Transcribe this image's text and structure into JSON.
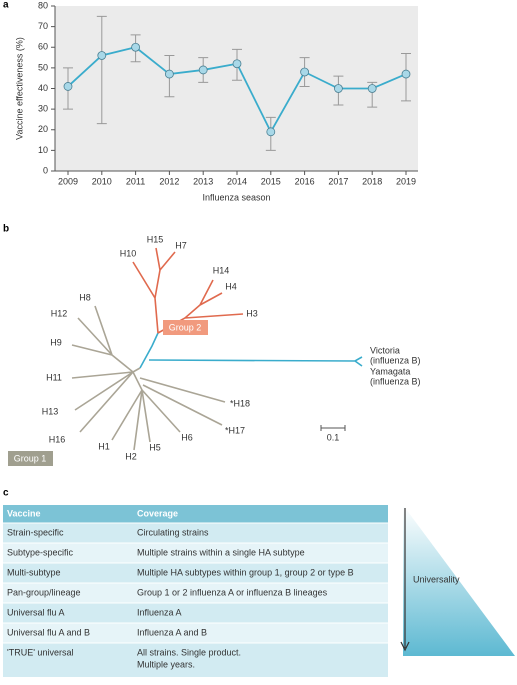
{
  "panel_labels": [
    "a",
    "b",
    "c"
  ],
  "chart_data": {
    "type": "line",
    "categories": [
      "2009",
      "2010",
      "2011",
      "2012",
      "2013",
      "2014",
      "2015",
      "2016",
      "2017",
      "2018",
      "2019"
    ],
    "series": [
      {
        "name": "Vaccine effectiveness",
        "color": "#3aaccc",
        "values": [
          41,
          56,
          60,
          47,
          49,
          52,
          19,
          48,
          40,
          40,
          47
        ],
        "lower": [
          30,
          23,
          53,
          36,
          43,
          44,
          10,
          41,
          32,
          31,
          34
        ],
        "upper": [
          50,
          75,
          66,
          56,
          55,
          59,
          26,
          55,
          46,
          43,
          57
        ]
      }
    ],
    "marker_color": "#a8d8e8",
    "error_color": "#999999",
    "background": "#ebebeb",
    "y_label": "Vaccine effectiveness (%)",
    "x_label": "Influenza season",
    "ylim": [
      0,
      80
    ],
    "yticks": [
      0,
      10,
      20,
      30,
      40,
      50,
      60,
      70,
      80
    ],
    "grid": false
  },
  "tree": {
    "labels": [
      "H15",
      "H7",
      "H10",
      "H14",
      "H4",
      "H3",
      "H8",
      "H12",
      "H9",
      "H11",
      "H13",
      "H16",
      "H1",
      "H2",
      "H5",
      "H6",
      "*H17",
      "*H18"
    ],
    "group_1": "Group 1",
    "group_2": "Group 2",
    "victoria": [
      "Victoria",
      "(influenza B)"
    ],
    "yamagata": [
      "Yamagata",
      "(influenza B)"
    ],
    "scale": "0.1"
  },
  "table": {
    "header": [
      "Vaccine",
      "Coverage"
    ],
    "rows": [
      [
        "Strain-specific",
        [
          "Circulating strains"
        ]
      ],
      [
        "Subtype-specific",
        [
          "Multiple strains within a single HA subtype"
        ]
      ],
      [
        "Multi-subtype",
        [
          "Multiple HA subtypes within group 1, group 2 or type B"
        ]
      ],
      [
        "Pan-group/lineage",
        [
          "Group 1 or 2 influenza A or influenza B lineages"
        ]
      ],
      [
        "Universal flu A",
        [
          "Influenza A"
        ]
      ],
      [
        "Universal flu A and B",
        [
          "Influenza A and B"
        ]
      ],
      [
        "'TRUE' universal",
        [
          "All strains. Single product.",
          "Multiple years."
        ]
      ]
    ],
    "axis_label": "Universality"
  }
}
